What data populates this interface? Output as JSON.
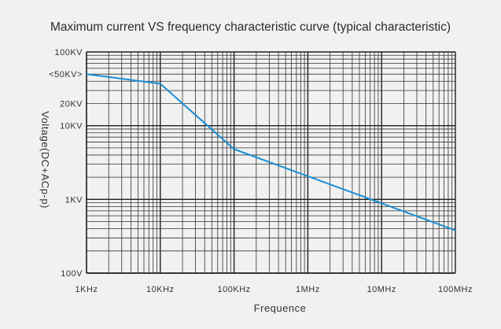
{
  "chart_data": {
    "type": "line",
    "title": "Maximum current VS frequency characteristic curve (typical characteristic)",
    "xlabel": "Frequence",
    "ylabel": "Voltage(DC+ACp-p)",
    "x_scale": "log",
    "y_scale": "log",
    "xlim": [
      1000,
      100000000
    ],
    "ylim": [
      100,
      100000
    ],
    "x_ticks": [
      {
        "value": 1000,
        "label": "1KHz"
      },
      {
        "value": 10000,
        "label": "10KHz"
      },
      {
        "value": 100000,
        "label": "100KHz"
      },
      {
        "value": 1000000,
        "label": "1MHz"
      },
      {
        "value": 10000000,
        "label": "10MHz"
      },
      {
        "value": 100000000,
        "label": "100MHz"
      }
    ],
    "y_ticks": [
      {
        "value": 100000,
        "label": "100KV"
      },
      {
        "value": 50000,
        "label": "<50KV>"
      },
      {
        "value": 20000,
        "label": "20KV"
      },
      {
        "value": 10000,
        "label": "10KV"
      },
      {
        "value": 1000,
        "label": "1KV"
      },
      {
        "value": 100,
        "label": "100V"
      }
    ],
    "grid": true,
    "legend": "none",
    "series": [
      {
        "color": "#1a8fd6",
        "x": [
          1000,
          10000,
          100000,
          100000000
        ],
        "y": [
          50000,
          37000,
          4800,
          380
        ]
      }
    ]
  }
}
